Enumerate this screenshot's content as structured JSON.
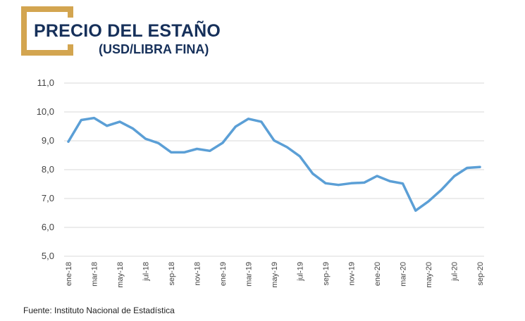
{
  "header": {
    "title": "PRECIO DEL ESTAÑO",
    "subtitle": "(USD/LIBRA FINA)"
  },
  "footer": {
    "source": "Fuente: Instituto Nacional de Estadística"
  },
  "colors": {
    "line": "#5b9fd6",
    "title": "#16305a",
    "frame": "#d3a550",
    "grid": "#d9d9d9"
  },
  "chart_data": {
    "type": "line",
    "title": "PRECIO DEL ESTAÑO",
    "subtitle": "(USD/LIBRA FINA)",
    "xlabel": "",
    "ylabel": "",
    "ylim": [
      5.0,
      11.0
    ],
    "yticks": [
      "5,0",
      "6,0",
      "7,0",
      "8,0",
      "9,0",
      "10,0",
      "11,0"
    ],
    "grid": true,
    "legend": "none",
    "x": [
      "ene-18",
      "feb-18",
      "mar-18",
      "abr-18",
      "may-18",
      "jun-18",
      "jul-18",
      "ago-18",
      "sep-18",
      "oct-18",
      "nov-18",
      "dic-18",
      "ene-19",
      "feb-19",
      "mar-19",
      "abr-19",
      "may-19",
      "jun-19",
      "jul-19",
      "ago-19",
      "sep-19",
      "oct-19",
      "nov-19",
      "dic-19",
      "ene-20",
      "feb-20",
      "mar-20",
      "abr-20",
      "may-20",
      "jun-20",
      "jul-20",
      "ago-20",
      "sep-20"
    ],
    "xtick_labels": [
      "ene-18",
      "mar-18",
      "may-18",
      "jul-18",
      "sep-18",
      "nov-18",
      "ene-19",
      "mar-19",
      "may-19",
      "jul-19",
      "sep-19",
      "nov-19",
      "ene-20",
      "mar-20",
      "may-20",
      "jul-20",
      "sep-20"
    ],
    "series": [
      {
        "name": "Precio del estaño",
        "values": [
          8.97,
          9.72,
          9.79,
          9.52,
          9.66,
          9.43,
          9.07,
          8.92,
          8.6,
          8.6,
          8.72,
          8.65,
          8.93,
          9.49,
          9.76,
          9.66,
          9.01,
          8.78,
          8.46,
          7.86,
          7.53,
          7.47,
          7.53,
          7.55,
          7.78,
          7.6,
          7.52,
          6.58,
          6.9,
          7.3,
          7.77,
          8.06,
          8.09
        ]
      }
    ]
  }
}
